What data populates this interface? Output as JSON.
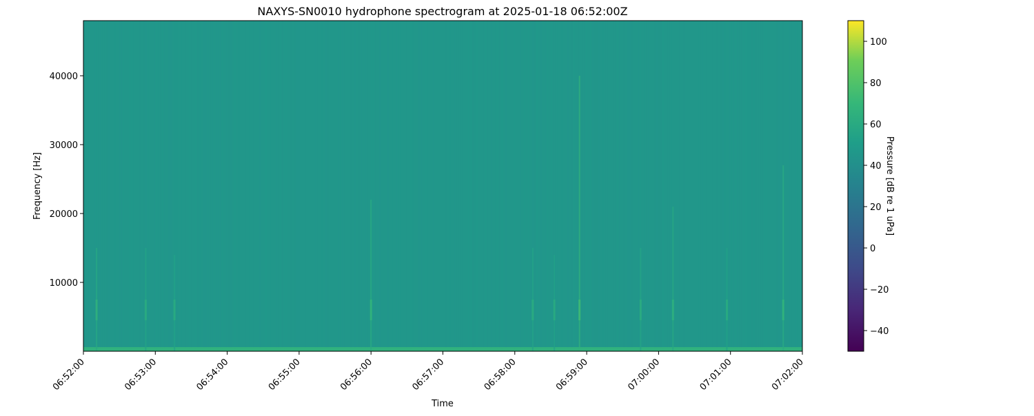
{
  "chart_data": {
    "type": "heatmap",
    "title": "NAXYS-SN0010 hydrophone spectrogram at 2025-01-18 06:52:00Z",
    "xlabel": "Time",
    "ylabel": "Frequency [Hz]",
    "xlim": [
      "06:52:00",
      "07:02:00"
    ],
    "ylim": [
      0,
      48000
    ],
    "x_ticks": [
      "06:52:00",
      "06:53:00",
      "06:54:00",
      "06:55:00",
      "06:56:00",
      "06:57:00",
      "06:58:00",
      "06:59:00",
      "07:00:00",
      "07:01:00",
      "07:02:00"
    ],
    "y_ticks": [
      10000,
      20000,
      30000,
      40000
    ],
    "colormap": "viridis",
    "colorbar": {
      "label": "Pressure [dB re 1 uPa]",
      "range": [
        -50,
        110
      ],
      "ticks": [
        -40,
        -20,
        0,
        20,
        40,
        60,
        80,
        100
      ]
    },
    "background_level_db": 45,
    "low_frequency_band": {
      "freq_max_hz": 600,
      "level_db": 65
    },
    "events": [
      {
        "time": "06:52:11",
        "freq_max_hz": 15000,
        "level_db": 58
      },
      {
        "time": "06:52:52",
        "freq_max_hz": 15000,
        "level_db": 54
      },
      {
        "time": "06:53:16",
        "freq_max_hz": 14000,
        "level_db": 53
      },
      {
        "time": "06:56:00",
        "freq_max_hz": 22000,
        "level_db": 60
      },
      {
        "time": "06:58:15",
        "freq_max_hz": 15000,
        "level_db": 54
      },
      {
        "time": "06:58:33",
        "freq_max_hz": 14000,
        "level_db": 53
      },
      {
        "time": "06:58:54",
        "freq_max_hz": 40000,
        "level_db": 66
      },
      {
        "time": "06:59:45",
        "freq_max_hz": 15000,
        "level_db": 55
      },
      {
        "time": "07:00:12",
        "freq_max_hz": 21000,
        "level_db": 57
      },
      {
        "time": "07:00:57",
        "freq_max_hz": 15000,
        "level_db": 53
      },
      {
        "time": "07:01:44",
        "freq_max_hz": 27000,
        "level_db": 60
      }
    ],
    "grid": false
  }
}
